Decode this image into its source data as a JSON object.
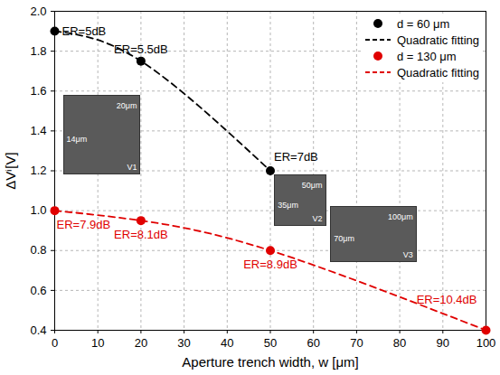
{
  "chart_data": {
    "type": "scatter",
    "x_label": "Aperture trench width, w [μm]",
    "y_label": "ΔVⁱ[V]",
    "xlim": [
      0,
      100
    ],
    "xticks": [
      0,
      10,
      20,
      30,
      40,
      50,
      60,
      70,
      80,
      90,
      100
    ],
    "ylim": [
      0.4,
      2.0
    ],
    "yticks": [
      0.4,
      0.6,
      0.8,
      {
        "value": 1.0,
        "label": "1.0"
      },
      1.2,
      1.4,
      1.6,
      1.8,
      {
        "value": 2.0,
        "label": "2.0"
      }
    ],
    "grid": true,
    "legend": "top-right",
    "series": [
      {
        "name": "d = 60 μm",
        "type": "scatter",
        "marker": "circle",
        "color": "#000000",
        "x": [
          0,
          20,
          50
        ],
        "values": [
          1.9,
          1.75,
          1.2
        ],
        "labels": [
          "ER=5dB",
          "ER=5.5dB",
          "ER=7dB"
        ]
      },
      {
        "name": "Quadratic fitting",
        "type": "line",
        "line_style": "dashed",
        "color": "#000000",
        "x": [
          0,
          20,
          50
        ],
        "values": [
          1.9,
          1.75,
          1.2
        ]
      },
      {
        "name": "d = 130 μm",
        "type": "scatter",
        "marker": "circle",
        "color": "#e00000",
        "x": [
          0,
          20,
          50,
          100
        ],
        "values": [
          1.0,
          0.95,
          0.8,
          0.4
        ],
        "labels": [
          "ER=7.9dB",
          "ER=8.1dB",
          "ER=8.9dB",
          "ER=10.4dB"
        ]
      },
      {
        "name": "Quadratic fitting",
        "type": "line",
        "line_style": "dashed",
        "color": "#e00000",
        "x": [
          0,
          20,
          50,
          100
        ],
        "values": [
          1.0,
          0.95,
          0.8,
          0.4
        ]
      }
    ],
    "insets": [
      {
        "label": "V1",
        "texts": [
          "20μm",
          "14μm"
        ]
      },
      {
        "label": "V2",
        "texts": [
          "50μm",
          "35μm"
        ]
      },
      {
        "label": "V3",
        "texts": [
          "100μm",
          "70μm"
        ]
      }
    ]
  }
}
